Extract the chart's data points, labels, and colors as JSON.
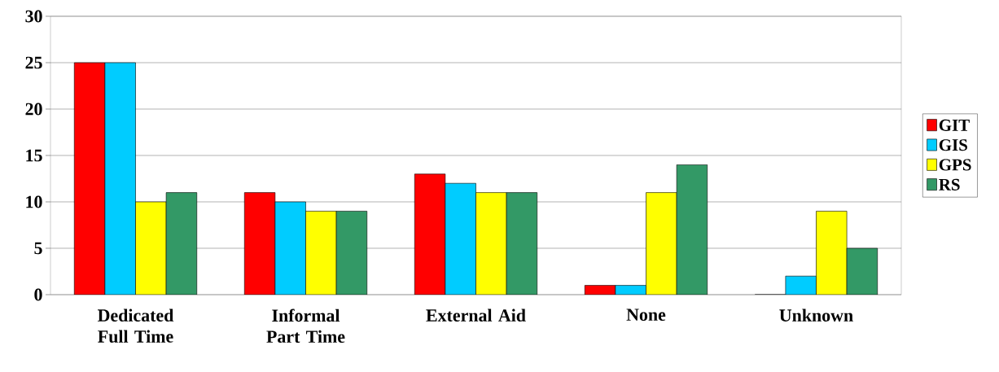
{
  "chart_data": {
    "type": "bar",
    "categories": [
      "Dedicated Full Time",
      "Informal Part Time",
      "External Aid",
      "None",
      "Unknown"
    ],
    "series": [
      {
        "name": "GIT",
        "color": "#ff0000",
        "values": [
          25,
          11,
          13,
          1,
          0
        ]
      },
      {
        "name": "GIS",
        "color": "#00ccff",
        "values": [
          25,
          10,
          12,
          1,
          2
        ]
      },
      {
        "name": "GPS",
        "color": "#ffff00",
        "values": [
          10,
          9,
          11,
          11,
          9
        ]
      },
      {
        "name": "RS",
        "color": "#339966",
        "values": [
          11,
          9,
          11,
          14,
          5
        ]
      }
    ],
    "ylim": [
      0,
      30
    ],
    "yticks": [
      0,
      5,
      10,
      15,
      20,
      25,
      30
    ],
    "grid": "y",
    "legend": "right"
  }
}
